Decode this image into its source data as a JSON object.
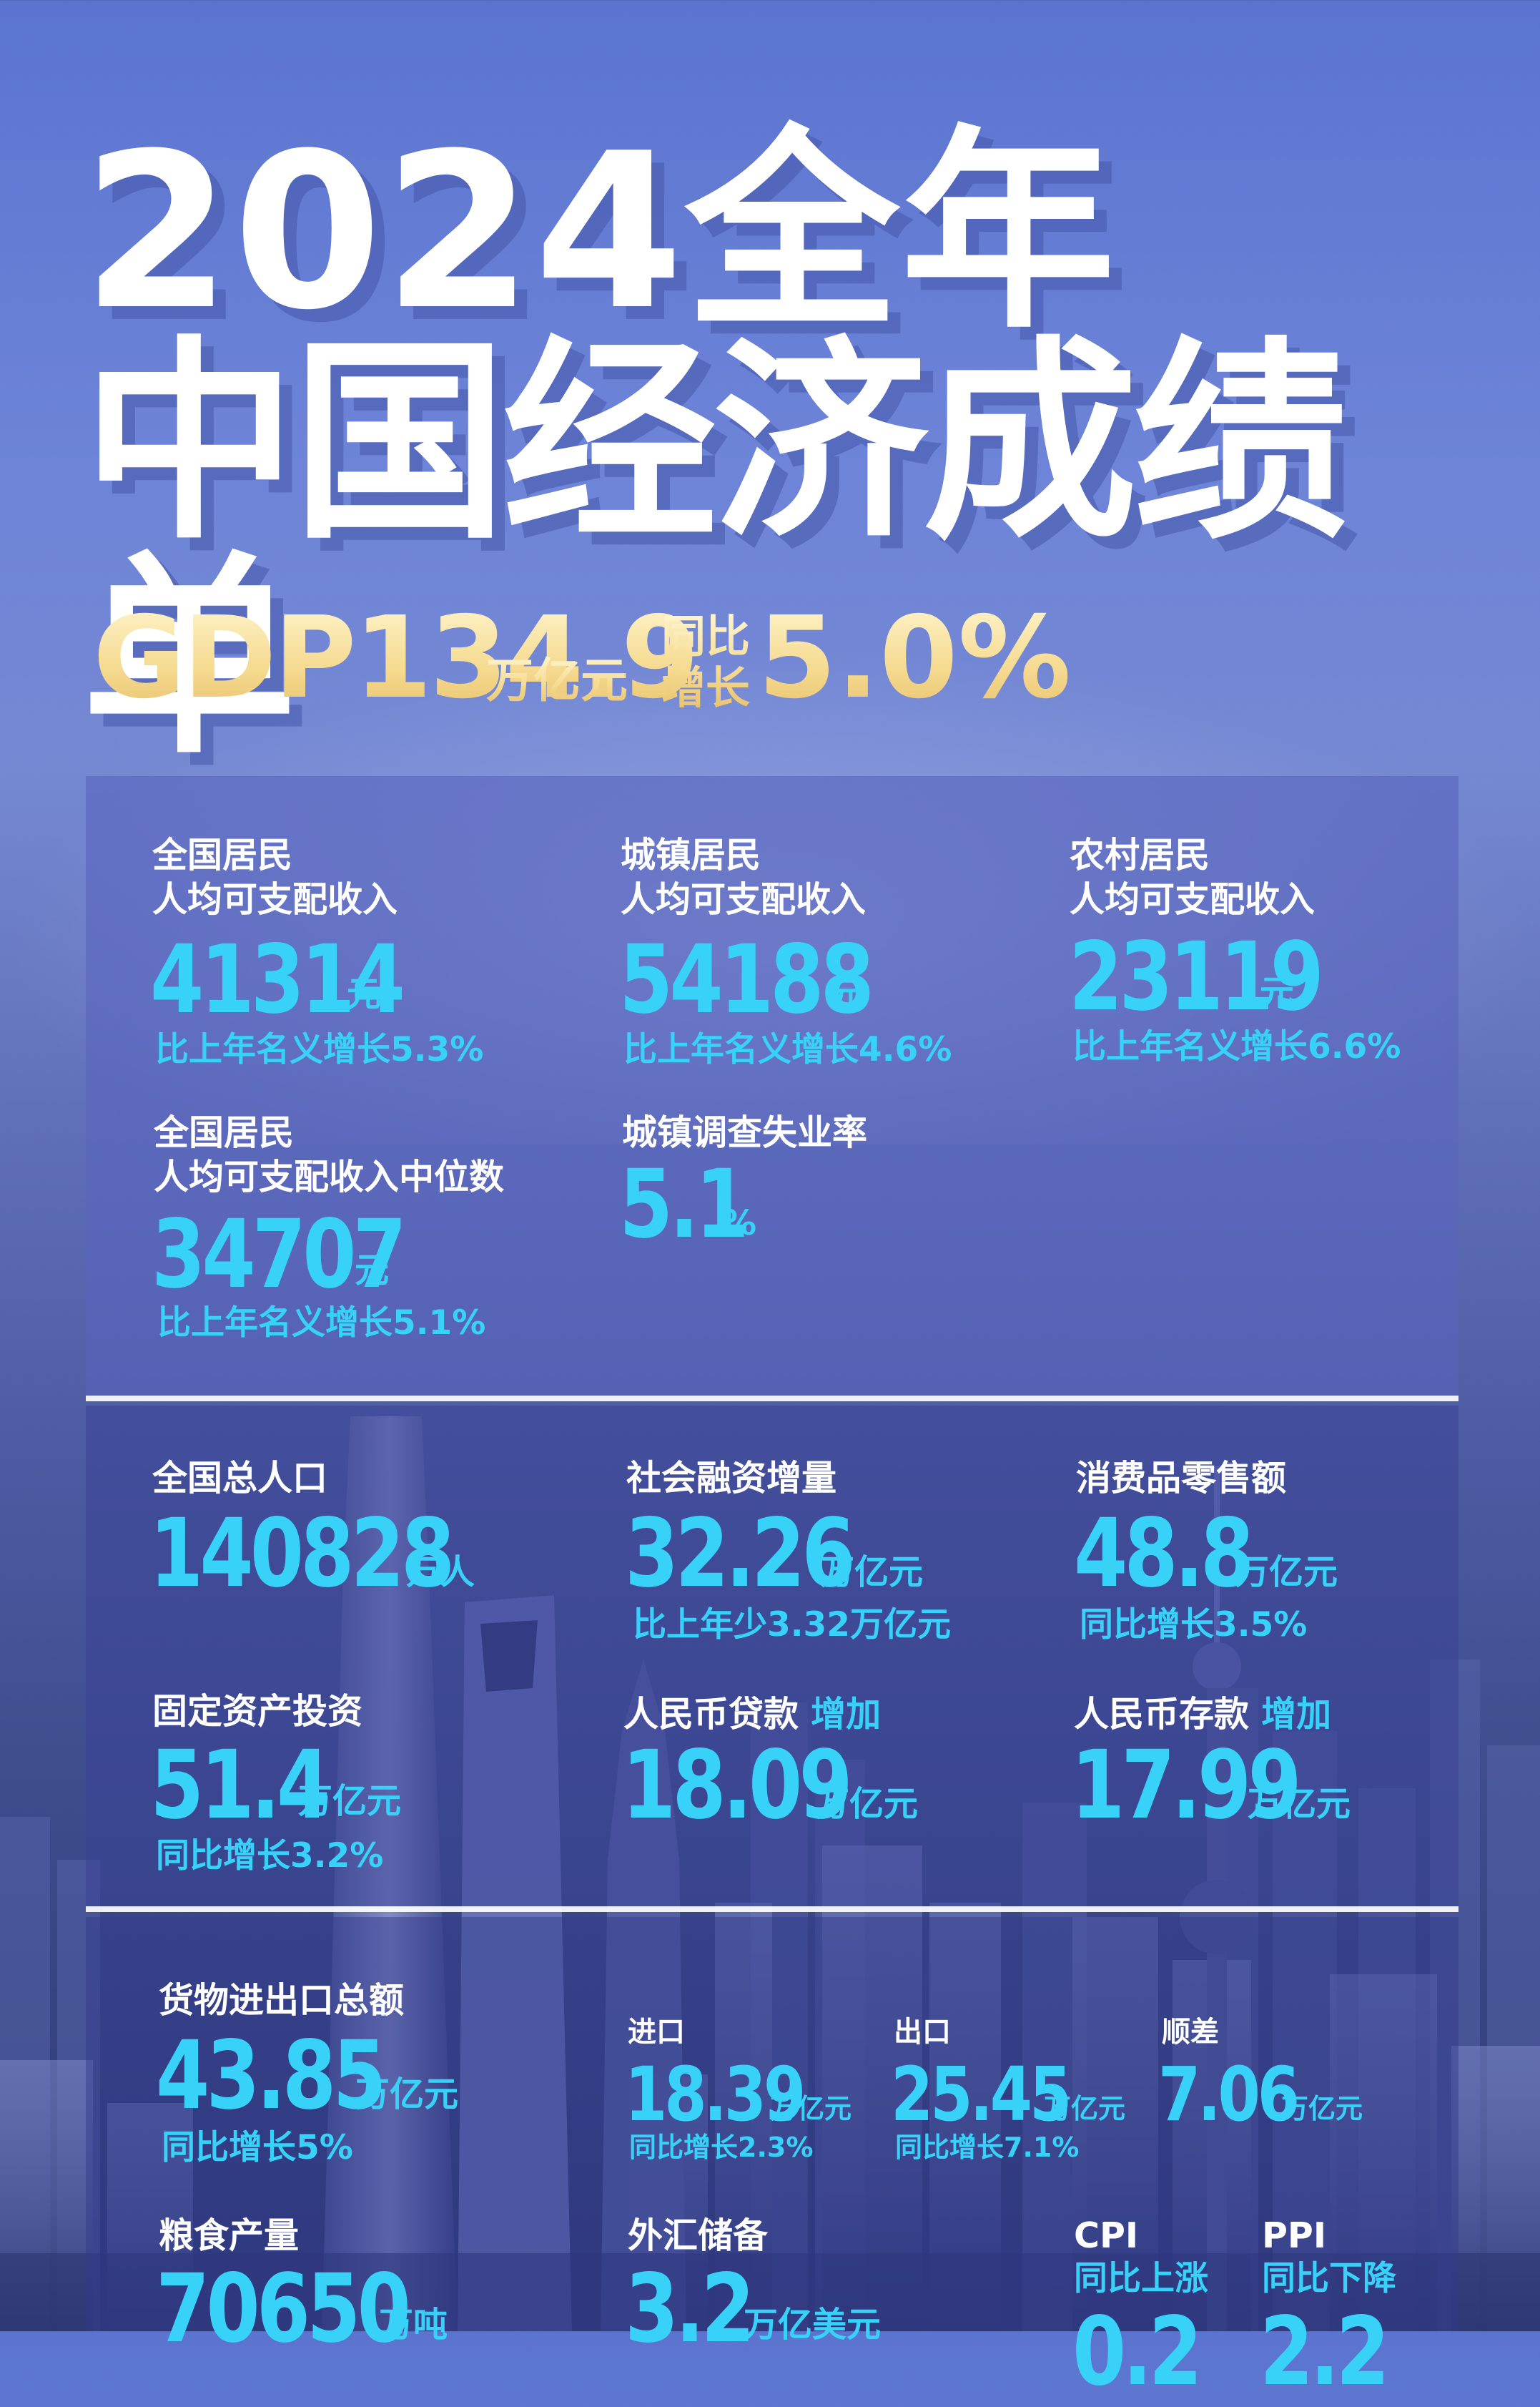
{
  "title": {
    "line1": "2024全年",
    "line2": "中国经济成绩单"
  },
  "gdp": {
    "label": "GDP134.9",
    "unit": "万亿元",
    "yoy_label": "同比增长",
    "growth": "5.0%"
  },
  "colors": {
    "accent": "#38d2f8",
    "gold": "#f6dc93",
    "text": "#ffffff"
  },
  "section1": {
    "national_income": {
      "label": "全国居民\n人均可支配收入",
      "value": "41314",
      "unit": "元",
      "note": "比上年名义增长5.3%"
    },
    "urban_income": {
      "label": "城镇居民\n人均可支配收入",
      "value": "54188",
      "unit": "元",
      "note": "比上年名义增长4.6%"
    },
    "rural_income": {
      "label": "农村居民\n人均可支配收入",
      "value": "23119",
      "unit": "元",
      "note": "比上年名义增长6.6%"
    },
    "median_income": {
      "label": "全国居民\n人均可支配收入中位数",
      "value": "34707",
      "unit": "元",
      "note": "比上年名义增长5.1%"
    },
    "unemployment": {
      "label": "城镇调查失业率",
      "value": "5.1",
      "unit": "%"
    }
  },
  "section2": {
    "population": {
      "label": "全国总人口",
      "value": "140828",
      "unit": "万人"
    },
    "social_financing": {
      "label": "社会融资增量",
      "value": "32.26",
      "unit": "万亿元",
      "note": "比上年少3.32万亿元"
    },
    "retail_sales": {
      "label": "消费品零售额",
      "value": "48.8",
      "unit": "万亿元",
      "note": "同比增长3.5%"
    },
    "fixed_investment": {
      "label": "固定资产投资",
      "value": "51.4",
      "unit": "万亿元",
      "note": "同比增长3.2%"
    },
    "rmb_loans": {
      "label": "人民币贷款",
      "label_hl": "增加",
      "value": "18.09",
      "unit": "万亿元"
    },
    "rmb_deposits": {
      "label": "人民币存款",
      "label_hl": "增加",
      "value": "17.99",
      "unit": "万亿元"
    }
  },
  "section3": {
    "trade_total": {
      "label": "货物进出口总额",
      "value": "43.85",
      "unit": "万亿元",
      "note": "同比增长5%"
    },
    "imports": {
      "label": "进口",
      "value": "18.39",
      "unit": "万亿元",
      "note": "同比增长2.3%"
    },
    "exports": {
      "label": "出口",
      "value": "25.45",
      "unit": "万亿元",
      "note": "同比增长7.1%"
    },
    "surplus": {
      "label": "顺差",
      "value": "7.06",
      "unit": "万亿元"
    },
    "grain": {
      "label": "粮食产量",
      "value": "70650",
      "unit": "万吨"
    },
    "fx_reserves": {
      "label": "外汇储备",
      "value": "3.2",
      "unit": "万亿美元"
    },
    "cpi": {
      "label": "CPI",
      "sub": "同比上涨",
      "value": "0.2"
    },
    "ppi": {
      "label": "PPI",
      "sub": "同比下降",
      "value": "2.2"
    }
  }
}
